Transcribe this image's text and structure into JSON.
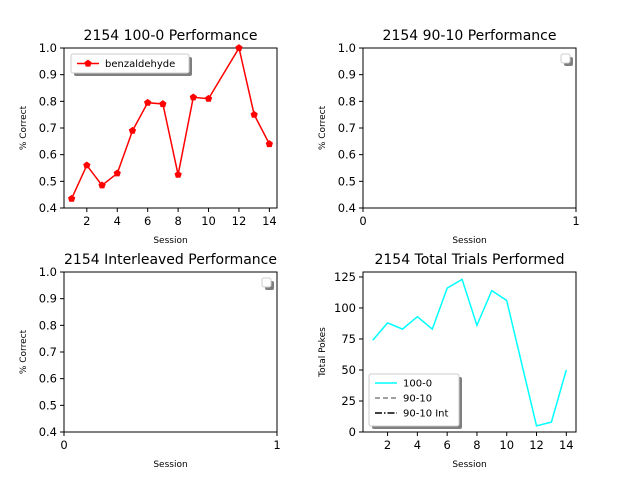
{
  "chart_data": [
    {
      "type": "line",
      "title": "2154 100-0 Performance",
      "xlabel": "Session",
      "ylabel": "% Correct",
      "xlim": [
        0.5,
        14.5
      ],
      "ylim": [
        0.4,
        1.0
      ],
      "xticks": [
        "2",
        "4",
        "6",
        "8",
        "10",
        "12",
        "14"
      ],
      "yticks": [
        "0.4",
        "0.5",
        "0.6",
        "0.7",
        "0.8",
        "0.9",
        "1.0"
      ],
      "legend_position": "top-left",
      "series": [
        {
          "name": "benzaldehyde",
          "color": "#ff0000",
          "marker": "pentagon",
          "x": [
            1,
            2,
            3,
            4,
            5,
            6,
            7,
            8,
            9,
            10,
            12,
            13,
            14
          ],
          "y": [
            0.435,
            0.56,
            0.485,
            0.53,
            0.69,
            0.795,
            0.79,
            0.525,
            0.815,
            0.81,
            1.0,
            0.75,
            0.64
          ]
        }
      ]
    },
    {
      "type": "line",
      "title": "2154 90-10 Performance",
      "xlabel": "Session",
      "ylabel": "% Correct",
      "xlim": [
        0,
        1
      ],
      "ylim": [
        0.4,
        1.0
      ],
      "xticks": [
        "0",
        "1"
      ],
      "yticks": [
        "0.4",
        "0.5",
        "0.6",
        "0.7",
        "0.8",
        "0.9",
        "1.0"
      ],
      "legend_position": "top-right",
      "series": []
    },
    {
      "type": "line",
      "title": "2154 Interleaved Performance",
      "xlabel": "Session",
      "ylabel": "% Correct",
      "xlim": [
        0,
        1
      ],
      "ylim": [
        0.4,
        1.0
      ],
      "xticks": [
        "0",
        "1"
      ],
      "yticks": [
        "0.4",
        "0.5",
        "0.6",
        "0.7",
        "0.8",
        "0.9",
        "1.0"
      ],
      "legend_position": "top-right",
      "series": []
    },
    {
      "type": "line",
      "title": "2154 Total Trials Performed",
      "xlabel": "Session",
      "ylabel": "Total Pokes",
      "xlim": [
        0.35,
        14.65
      ],
      "ylim": [
        0,
        129
      ],
      "xticks": [
        "2",
        "4",
        "6",
        "8",
        "10",
        "12",
        "14"
      ],
      "yticks": [
        "0",
        "25",
        "50",
        "75",
        "100",
        "125"
      ],
      "legend_position": "bottom-left",
      "series": [
        {
          "name": "100-0",
          "color": "#00ffff",
          "style": "solid",
          "x": [
            1,
            2,
            3,
            4,
            5,
            6,
            7,
            8,
            9,
            10,
            12,
            13,
            14
          ],
          "y": [
            74,
            88,
            83,
            93,
            83,
            116,
            123,
            86,
            114,
            106,
            5,
            8,
            50
          ]
        },
        {
          "name": "90-10",
          "color": "#808080",
          "style": "dashed",
          "x": [],
          "y": []
        },
        {
          "name": "90-10 Int",
          "color": "#000000",
          "style": "dashdot",
          "x": [],
          "y": []
        }
      ]
    }
  ]
}
